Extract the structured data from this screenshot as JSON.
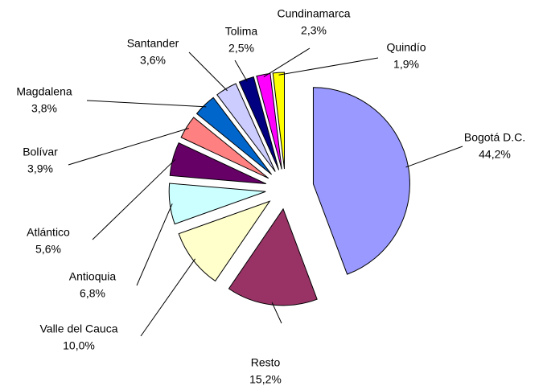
{
  "chart_data": {
    "type": "pie",
    "categories": [
      "Bogotá D.C.",
      "Resto",
      "Valle del Cauca",
      "Antioquia",
      "Atlántico",
      "Bolívar",
      "Magdalena",
      "Santander",
      "Tolima",
      "Cundinamarca",
      "Quindío"
    ],
    "values": [
      44.2,
      15.2,
      10.0,
      6.8,
      5.6,
      3.9,
      3.8,
      3.6,
      2.5,
      2.3,
      1.9
    ],
    "value_labels": [
      "44,2%",
      "15,2%",
      "10,0%",
      "6,8%",
      "5,6%",
      "3,9%",
      "3,8%",
      "3,6%",
      "2,5%",
      "2,3%",
      "1,9%"
    ],
    "colors": [
      "#9999ff",
      "#993366",
      "#ffffcc",
      "#ccffff",
      "#660066",
      "#ff8080",
      "#0066cc",
      "#ccccff",
      "#000080",
      "#ff00ff",
      "#ffff00"
    ]
  }
}
